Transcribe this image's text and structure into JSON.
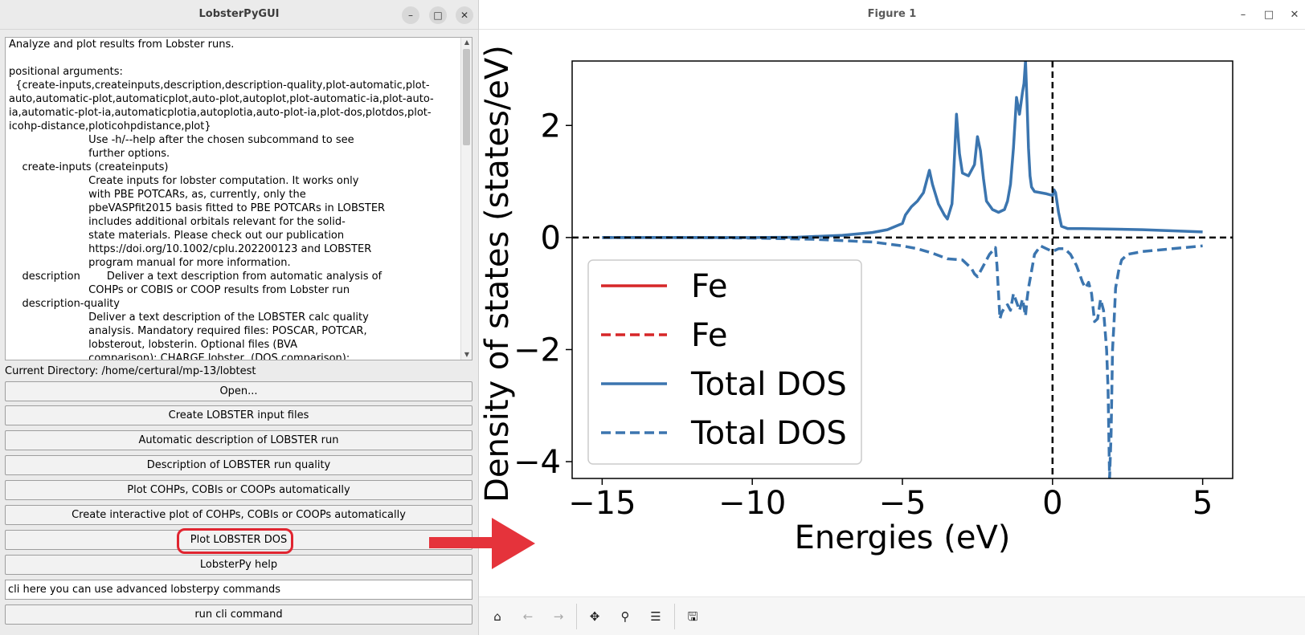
{
  "left_window": {
    "title": "LobsterPyGUI",
    "help_lines": [
      "Analyze and plot results from Lobster runs.",
      "",
      "positional arguments:",
      "  {create-inputs,createinputs,description,description-quality,plot-automatic,plot-",
      "auto,automatic-plot,automaticplot,auto-plot,autoplot,plot-automatic-ia,plot-auto-",
      "ia,automatic-plot-ia,automaticplotia,autoplotia,auto-plot-ia,plot-dos,plotdos,plot-",
      "icohp-distance,ploticohpdistance,plot}",
      "                        Use -h/--help after the chosen subcommand to see",
      "                        further options.",
      "    create-inputs (createinputs)",
      "                        Create inputs for lobster computation. It works only",
      "                        with PBE POTCARs, as, currently, only the",
      "                        pbeVASPfit2015 basis fitted to PBE POTCARs in LOBSTER",
      "                        includes additional orbitals relevant for the solid-",
      "                        state materials. Please check out our publication",
      "                        https://doi.org/10.1002/cplu.202200123 and LOBSTER",
      "                        program manual for more information.",
      "    description        Deliver a text description from automatic analysis of",
      "                        COHPs or COBIS or COOP results from Lobster run",
      "    description-quality",
      "                        Deliver a text description of the LOBSTER calc quality",
      "                        analysis. Mandatory required files: POSCAR, POTCAR,",
      "                        lobsterout, lobsterin. Optional files (BVA",
      "                        comparison): CHARGE.lobster, (DOS comparison):"
    ],
    "current_directory": "Current Directory: /home/certural/mp-13/lobtest",
    "buttons": {
      "open": "Open...",
      "create_inputs": "Create LOBSTER input files",
      "auto_description": "Automatic description of LOBSTER run",
      "quality_description": "Description of LOBSTER run quality",
      "plot_auto": "Plot COHPs, COBIs or COOPs automatically",
      "plot_interactive": "Create interactive plot of COHPs, COBIs or COOPs automatically",
      "plot_dos": "Plot LOBSTER DOS",
      "help": "LobsterPy help",
      "run_cli": "run cli command"
    },
    "cli_field_value": "cli here you can use advanced lobsterpy commands",
    "highlight_color": "#e02530"
  },
  "right_window": {
    "title": "Figure 1",
    "toolbar_icons": [
      "home-icon",
      "back-icon",
      "forward-icon",
      "pan-icon",
      "zoom-icon",
      "configure-icon",
      "save-icon"
    ]
  },
  "chart_data": {
    "type": "line",
    "title": "",
    "xlabel": "Energies (eV)",
    "ylabel": "Density of states (states/eV)",
    "xlim": [
      -16,
      6
    ],
    "ylim": [
      -4.3,
      3.15
    ],
    "xticks": [
      -15,
      -10,
      -5,
      0,
      5
    ],
    "yticks": [
      -4,
      -2,
      0,
      2
    ],
    "xtick_labels": [
      "−15",
      "−10",
      "−5",
      "0",
      "5"
    ],
    "ytick_labels": [
      "−4",
      "−2",
      "0",
      "2"
    ],
    "reference_lines": {
      "x": 0,
      "y": 0
    },
    "legend_position": "lower-left",
    "legend": [
      {
        "label": "Fe",
        "color": "#d62728",
        "dash": "solid"
      },
      {
        "label": "Fe",
        "color": "#d62728",
        "dash": "dashed"
      },
      {
        "label": "Total DOS",
        "color": "#3b75af",
        "dash": "solid"
      },
      {
        "label": "Total DOS",
        "color": "#3b75af",
        "dash": "dashed"
      }
    ],
    "series": [
      {
        "color": "#3b75af",
        "dash": "solid",
        "x": [
          -15,
          -12,
          -10,
          -8.5,
          -7,
          -6,
          -5.5,
          -5,
          -4.9,
          -4.7,
          -4.5,
          -4.3,
          -4.2,
          -4.1,
          -4.0,
          -3.8,
          -3.6,
          -3.5,
          -3.35,
          -3.3,
          -3.2,
          -3.1,
          -3.0,
          -2.8,
          -2.6,
          -2.5,
          -2.4,
          -2.3,
          -2.2,
          -2.0,
          -1.8,
          -1.6,
          -1.5,
          -1.4,
          -1.3,
          -1.2,
          -1.1,
          -1.0,
          -0.95,
          -0.9,
          -0.85,
          -0.8,
          -0.75,
          -0.7,
          -0.6,
          -0.4,
          -0.2,
          0,
          0.05,
          0.1,
          0.2,
          0.3,
          0.5,
          1,
          2,
          3,
          4,
          5
        ],
        "y": [
          0.0,
          0.0,
          0.0,
          0.005,
          0.04,
          0.09,
          0.14,
          0.25,
          0.4,
          0.55,
          0.65,
          0.8,
          1.0,
          1.2,
          0.95,
          0.6,
          0.4,
          0.33,
          0.6,
          1.05,
          2.2,
          1.5,
          1.15,
          1.1,
          1.3,
          1.8,
          1.55,
          1.05,
          0.65,
          0.5,
          0.45,
          0.5,
          0.65,
          0.95,
          1.6,
          2.5,
          2.2,
          2.6,
          2.75,
          3.15,
          2.4,
          1.6,
          1.1,
          0.9,
          0.82,
          0.8,
          0.78,
          0.75,
          0.85,
          0.8,
          0.45,
          0.2,
          0.16,
          0.16,
          0.15,
          0.14,
          0.12,
          0.1
        ]
      },
      {
        "color": "#3b75af",
        "dash": "dashed",
        "x": [
          -15,
          -12,
          -10,
          -8,
          -6,
          -5,
          -4.5,
          -4,
          -3.5,
          -3,
          -2.7,
          -2.6,
          -2.5,
          -2.3,
          -2.1,
          -1.9,
          -1.85,
          -1.8,
          -1.75,
          -1.7,
          -1.6,
          -1.5,
          -1.4,
          -1.3,
          -1.2,
          -1.1,
          -1.0,
          -0.9,
          -0.85,
          -0.8,
          -0.7,
          -0.6,
          -0.4,
          -0.2,
          0,
          0.2,
          0.4,
          0.6,
          0.8,
          1.0,
          1.1,
          1.2,
          1.3,
          1.4,
          1.5,
          1.6,
          1.7,
          1.8,
          1.85,
          1.9,
          1.95,
          2.0,
          2.05,
          2.1,
          2.2,
          2.3,
          2.5,
          3,
          4,
          5
        ],
        "y": [
          0.0,
          0.0,
          -0.01,
          -0.03,
          -0.08,
          -0.15,
          -0.2,
          -0.28,
          -0.38,
          -0.4,
          -0.55,
          -0.65,
          -0.7,
          -0.5,
          -0.3,
          -0.18,
          -0.5,
          -1.0,
          -1.45,
          -1.35,
          -1.25,
          -1.2,
          -1.3,
          -1.0,
          -1.15,
          -1.3,
          -1.1,
          -1.4,
          -1.1,
          -0.9,
          -0.6,
          -0.3,
          -0.15,
          -0.2,
          -0.25,
          -0.2,
          -0.2,
          -0.3,
          -0.5,
          -0.8,
          -0.9,
          -0.8,
          -1.0,
          -1.5,
          -1.45,
          -1.1,
          -1.3,
          -2.0,
          -2.7,
          -4.3,
          -3.5,
          -2.0,
          -1.5,
          -0.9,
          -0.6,
          -0.4,
          -0.3,
          -0.25,
          -0.2,
          -0.15
        ]
      }
    ]
  }
}
